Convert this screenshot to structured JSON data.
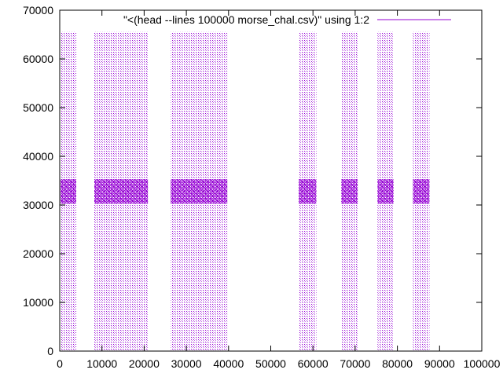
{
  "chart_data": {
    "type": "scatter",
    "title": "",
    "xlabel": "",
    "ylabel": "",
    "xlim": [
      0,
      100000
    ],
    "ylim": [
      0,
      70000
    ],
    "x_ticks": [
      0,
      10000,
      20000,
      30000,
      40000,
      50000,
      60000,
      70000,
      80000,
      90000,
      100000
    ],
    "y_ticks": [
      0,
      10000,
      20000,
      30000,
      40000,
      50000,
      60000,
      70000
    ],
    "x_tick_labels": [
      "0",
      "10000",
      "20000",
      "30000",
      "40000",
      "50000",
      "60000",
      "70000",
      "80000",
      "90000",
      "100000"
    ],
    "y_tick_labels": [
      "0",
      "10000",
      "20000",
      "30000",
      "40000",
      "50000",
      "60000",
      "70000"
    ],
    "grid": false,
    "legend_position": "top-right",
    "series": [
      {
        "name": "\"<(head --lines 100000 morse_chal.csv)\" using 1:2",
        "color": "#9400d3",
        "marker": "dot",
        "point_pattern": "dense vertical bands of points spanning y 0 to 65535, densest near y 32768",
        "y_range": [
          0,
          65535
        ],
        "y_dense_center": 32768,
        "x_bands": [
          [
            200,
            3900
          ],
          [
            8200,
            20900
          ],
          [
            26300,
            39700
          ],
          [
            56600,
            60800
          ],
          [
            66700,
            70600
          ],
          [
            75300,
            79100
          ],
          [
            83700,
            87600
          ]
        ]
      }
    ]
  }
}
